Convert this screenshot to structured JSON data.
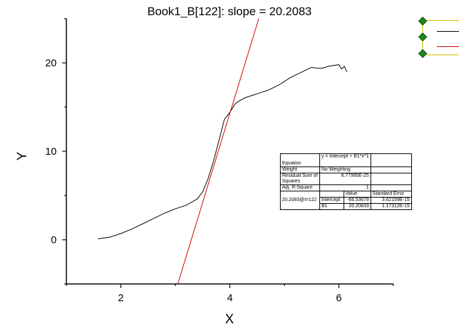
{
  "chart_data": {
    "type": "line",
    "title": "Book1_B[122]: slope = 20.2083",
    "xlabel": "X",
    "ylabel": "Y",
    "xlim": [
      1,
      7
    ],
    "ylim": [
      -5,
      25
    ],
    "xticks": [
      2,
      4,
      6
    ],
    "yticks": [
      0,
      10,
      20
    ],
    "series": [
      {
        "color": "#000000",
        "x": [
          1.58,
          1.8,
          2.0,
          2.2,
          2.4,
          2.6,
          2.8,
          3.0,
          3.2,
          3.4,
          3.5,
          3.6,
          3.7,
          3.8,
          3.9,
          4.0,
          4.1,
          4.2,
          4.3,
          4.4,
          4.5,
          4.6,
          4.7,
          4.8,
          4.9,
          5.0,
          5.1,
          5.2,
          5.3,
          5.4,
          5.5,
          5.6,
          5.7,
          5.8,
          5.9,
          6.0,
          6.05,
          6.1,
          6.15
        ],
        "y": [
          0.1,
          0.3,
          0.7,
          1.2,
          1.8,
          2.4,
          3.0,
          3.5,
          3.9,
          4.6,
          5.4,
          6.9,
          8.9,
          11.2,
          13.6,
          14.4,
          15.4,
          15.8,
          16.1,
          16.3,
          16.5,
          16.7,
          16.9,
          17.2,
          17.5,
          17.9,
          18.3,
          18.6,
          18.9,
          19.2,
          19.5,
          19.4,
          19.4,
          19.6,
          19.7,
          19.8,
          19.3,
          19.6,
          19.0
        ]
      },
      {
        "color": "#d00000",
        "x": [
          3.045,
          4.54
        ],
        "y": [
          -5,
          25.2
        ]
      }
    ],
    "fit_table": {
      "rows": [
        {
          "label": "Equation",
          "value": "y = Intercept + B1*x^1"
        },
        {
          "label": "Weight",
          "value": "No Weighting"
        },
        {
          "label": "Residual Sum of Squares",
          "value": "6.77995E-25"
        },
        {
          "label": "Adj. R-Square",
          "value": "1"
        }
      ],
      "param_headers": [
        "Value",
        "Standard Error"
      ],
      "group_label": "20.2083@I=122",
      "params": [
        {
          "name": "Intercept",
          "value": "-66.53679",
          "error": "3.62159E-15"
        },
        {
          "name": "B1",
          "value": "20.20833",
          "error": "1.17312E-15"
        }
      ]
    }
  }
}
